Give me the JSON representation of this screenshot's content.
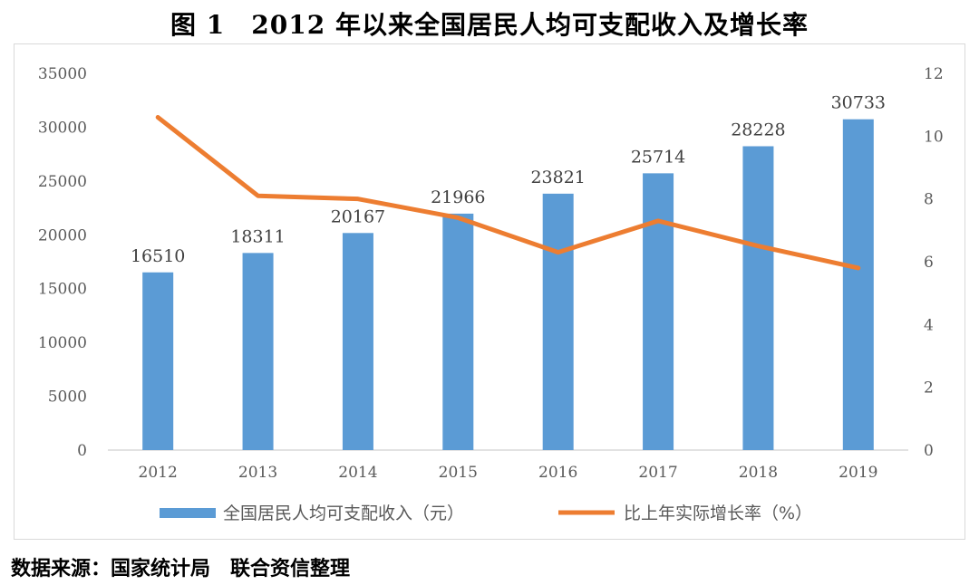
{
  "title": "图 1　2012 年以来全国居民人均可支配收入及增长率",
  "source": "数据来源：国家统计局　联合资信整理",
  "colors": {
    "bar": "#5b9bd5",
    "line": "#ed7d31",
    "axis": "#d9d9d9",
    "tick_text": "#595959"
  },
  "chart_data": {
    "type": "bar+line",
    "title": "图 1　2012 年以来全国居民人均可支配收入及增长率",
    "categories": [
      "2012",
      "2013",
      "2014",
      "2015",
      "2016",
      "2017",
      "2018",
      "2019"
    ],
    "series": [
      {
        "name": "全国居民人均可支配收入（元）",
        "type": "bar",
        "axis": "left",
        "values": [
          16510,
          18311,
          20167,
          21966,
          23821,
          25714,
          28228,
          30733
        ]
      },
      {
        "name": "比上年实际增长率（%）",
        "type": "line",
        "axis": "right",
        "values": [
          10.6,
          8.1,
          8.0,
          7.4,
          6.3,
          7.3,
          6.5,
          5.8
        ]
      }
    ],
    "y_left": {
      "min": 0,
      "max": 35000,
      "ticks": [
        0,
        5000,
        10000,
        15000,
        20000,
        25000,
        30000,
        35000
      ]
    },
    "y_right": {
      "min": 0,
      "max": 12,
      "ticks": [
        0,
        2,
        4,
        6,
        8,
        10,
        12
      ]
    },
    "data_labels": [
      "16510",
      "18311",
      "20167",
      "21966",
      "23821",
      "25714",
      "28228",
      "30733"
    ],
    "grid": false,
    "legend": "bottom"
  }
}
